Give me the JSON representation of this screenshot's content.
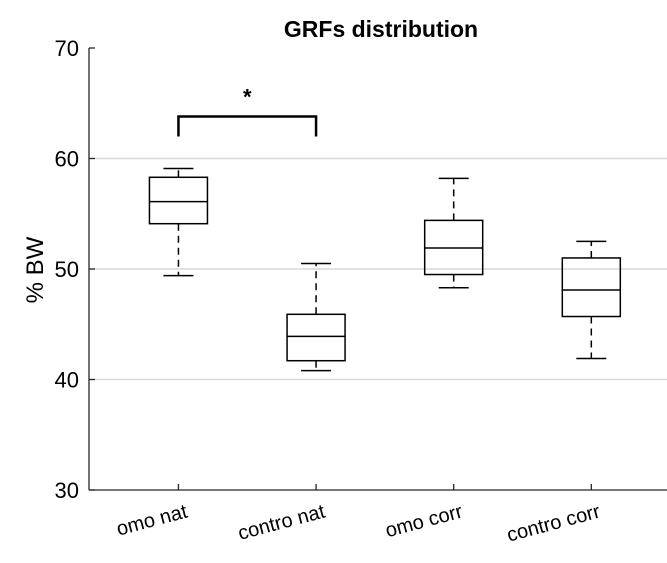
{
  "chart_data": {
    "type": "box",
    "title": "GRFs distribution",
    "ylabel": "% BW",
    "xlabel": "",
    "ylim": [
      30,
      70
    ],
    "yticks": [
      30,
      40,
      50,
      60,
      70
    ],
    "grid": "horizontal",
    "categories": [
      "omo nat",
      "contro nat",
      "omo corr",
      "contro corr"
    ],
    "boxes": [
      {
        "category": "omo nat",
        "whisker_low": 49.4,
        "q1": 54.1,
        "median": 56.1,
        "q3": 58.3,
        "whisker_high": 59.1
      },
      {
        "category": "contro nat",
        "whisker_low": 40.8,
        "q1": 41.7,
        "median": 43.9,
        "q3": 45.9,
        "whisker_high": 50.5
      },
      {
        "category": "omo corr",
        "whisker_low": 48.3,
        "q1": 49.5,
        "median": 51.9,
        "q3": 54.4,
        "whisker_high": 58.2
      },
      {
        "category": "contro corr",
        "whisker_low": 41.9,
        "q1": 45.7,
        "median": 48.1,
        "q3": 51.0,
        "whisker_high": 52.5
      }
    ],
    "significance": [
      {
        "between": [
          "omo nat",
          "contro nat"
        ],
        "y": 63.8,
        "label": "*"
      }
    ]
  }
}
